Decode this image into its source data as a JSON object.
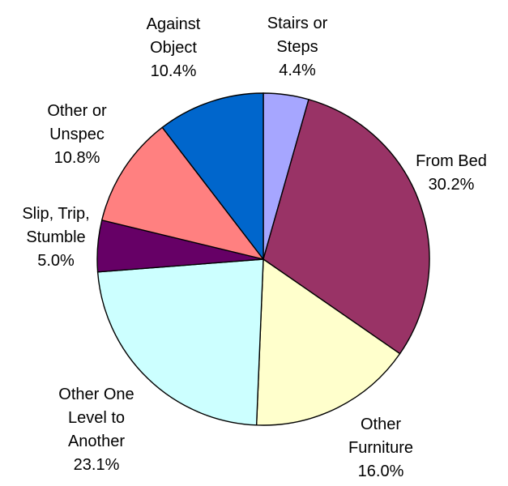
{
  "chart_data": {
    "type": "pie",
    "title": "",
    "start_angle_deg": 90,
    "direction": "clockwise",
    "slices": [
      {
        "label": [
          "Stairs or",
          "Steps"
        ],
        "percent_label": "4.4%",
        "value": 4.4,
        "color": "#A6A6FF"
      },
      {
        "label": [
          "From Bed"
        ],
        "percent_label": "30.2%",
        "value": 30.2,
        "color": "#993366"
      },
      {
        "label": [
          "Other",
          "Furniture"
        ],
        "percent_label": "16.0%",
        "value": 16.0,
        "color": "#FFFFCC"
      },
      {
        "label": [
          "Other One",
          "Level to",
          "Another"
        ],
        "percent_label": "23.1%",
        "value": 23.1,
        "color": "#CCFFFF"
      },
      {
        "label": [
          "Slip, Trip,",
          "Stumble"
        ],
        "percent_label": "5.0%",
        "value": 5.0,
        "color": "#660066"
      },
      {
        "label": [
          "Other or",
          "Unspec"
        ],
        "percent_label": "10.8%",
        "value": 10.8,
        "color": "#FF8080"
      },
      {
        "label": [
          "Against",
          "Object"
        ],
        "percent_label": "10.4%",
        "value": 10.4,
        "color": "#0066CC"
      }
    ]
  }
}
